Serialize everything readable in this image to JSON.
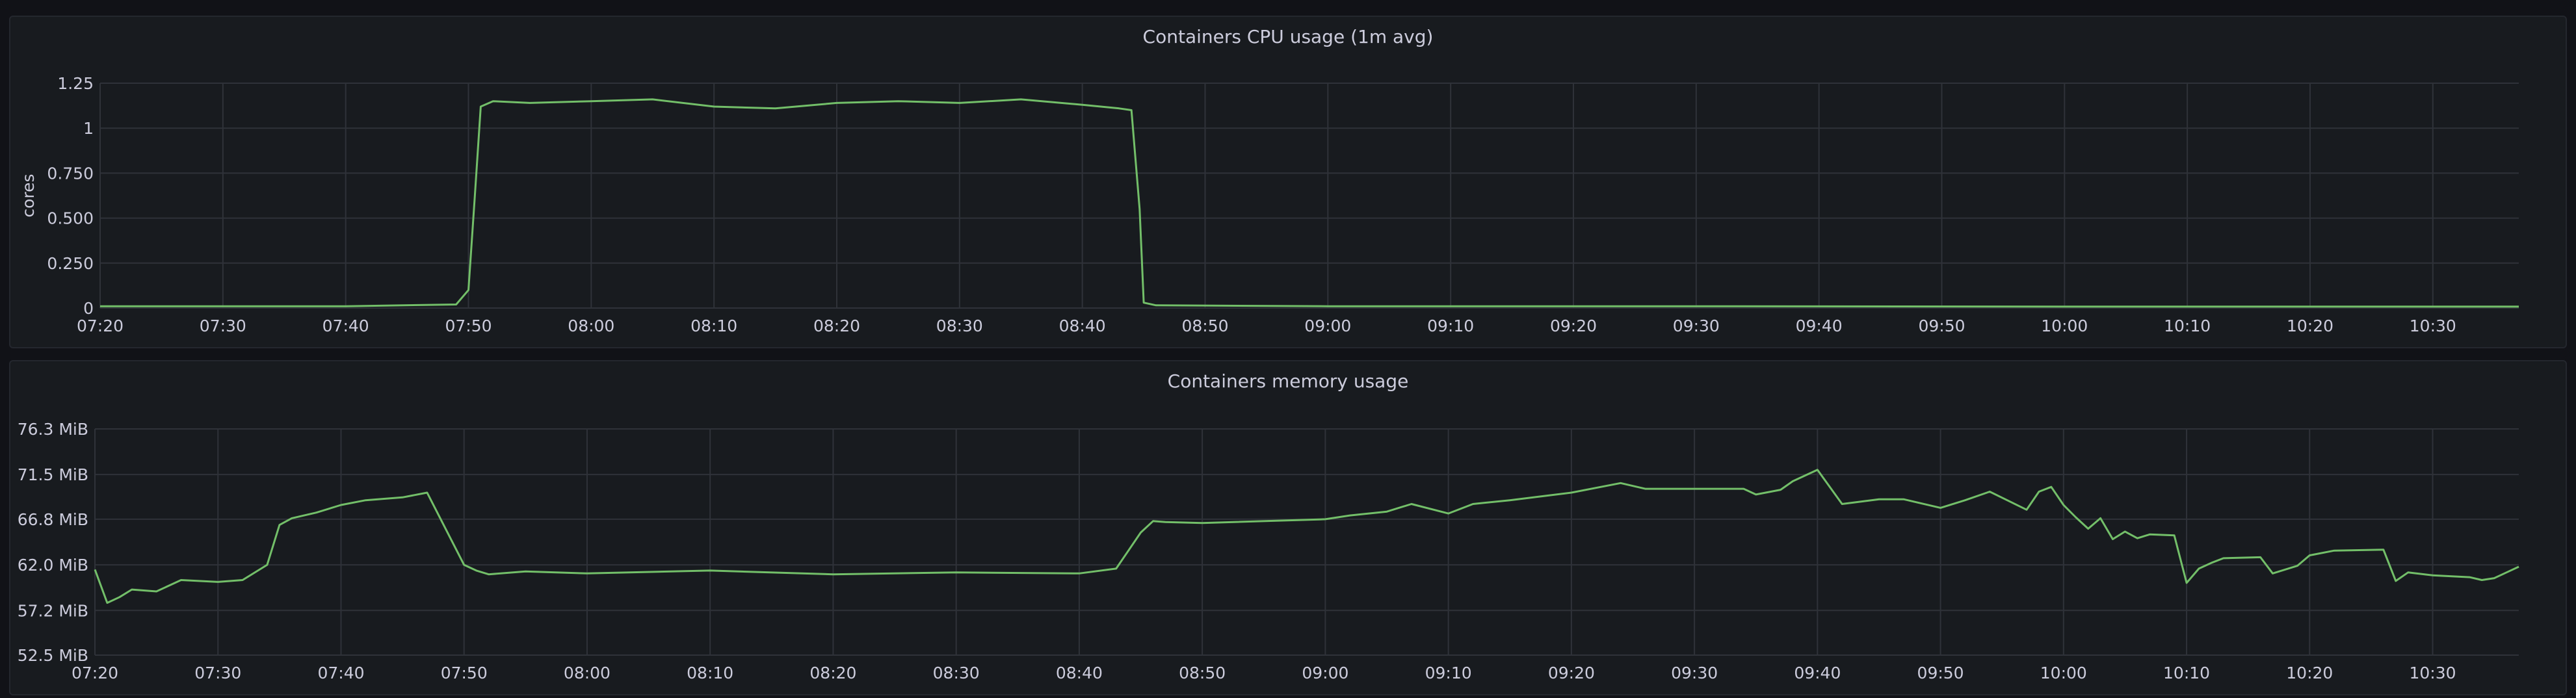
{
  "colors": {
    "series": "#73bf69",
    "grid": "#2f3239",
    "text": "#ccccdc",
    "panel": "#181b1f",
    "background": "#111217"
  },
  "chart_data": [
    {
      "type": "line",
      "title": "Containers CPU usage (1m avg)",
      "ylabel": "cores",
      "xlabel": "",
      "ylim": [
        0,
        1.25
      ],
      "yticks": [
        0,
        0.25,
        0.5,
        0.75,
        1,
        1.25
      ],
      "ytick_labels": [
        "0",
        "0.250",
        "0.500",
        "0.750",
        "1",
        "1.25"
      ],
      "xlim": [
        "07:20",
        "10:37"
      ],
      "xtick_labels": [
        "07:20",
        "07:30",
        "07:40",
        "07:50",
        "08:00",
        "08:10",
        "08:20",
        "08:30",
        "08:40",
        "08:50",
        "09:00",
        "09:10",
        "09:20",
        "09:30",
        "09:40",
        "09:50",
        "10:00",
        "10:10",
        "10:20",
        "10:30"
      ],
      "grid": true,
      "legend": "none",
      "series": [
        {
          "x": [
            "07:20",
            "07:30",
            "07:40",
            "07:49",
            "07:50",
            "07:50:30",
            "07:51",
            "07:52",
            "07:55",
            "08:00",
            "08:05",
            "08:10",
            "08:15",
            "08:20",
            "08:25",
            "08:30",
            "08:35",
            "08:40",
            "08:43",
            "08:44",
            "08:44:40",
            "08:45",
            "08:46",
            "09:00",
            "09:30",
            "10:00",
            "10:30",
            "10:37"
          ],
          "y": [
            0.01,
            0.01,
            0.01,
            0.02,
            0.1,
            0.6,
            1.12,
            1.15,
            1.14,
            1.15,
            1.16,
            1.12,
            1.11,
            1.14,
            1.15,
            1.14,
            1.16,
            1.13,
            1.11,
            1.1,
            0.55,
            0.03,
            0.015,
            0.01,
            0.01,
            0.008,
            0.008,
            0.008
          ]
        }
      ]
    },
    {
      "type": "line",
      "title": "Containers memory usage",
      "ylabel": "",
      "xlabel": "",
      "ylim": [
        52.5,
        76.3
      ],
      "yticks": [
        52.5,
        57.2,
        62.0,
        66.8,
        71.5,
        76.3
      ],
      "ytick_labels": [
        "52.5 MiB",
        "57.2 MiB",
        "62.0 MiB",
        "66.8 MiB",
        "71.5 MiB",
        "76.3 MiB"
      ],
      "xlim": [
        "07:20",
        "10:37"
      ],
      "xtick_labels": [
        "07:20",
        "07:30",
        "07:40",
        "07:50",
        "08:00",
        "08:10",
        "08:20",
        "08:30",
        "08:40",
        "08:50",
        "09:00",
        "09:10",
        "09:20",
        "09:30",
        "09:40",
        "09:50",
        "10:00",
        "10:10",
        "10:20",
        "10:30"
      ],
      "grid": true,
      "legend": "none",
      "series": [
        {
          "x": [
            "07:20",
            "07:21",
            "07:22",
            "07:23",
            "07:25",
            "07:27",
            "07:30",
            "07:32",
            "07:34",
            "07:35",
            "07:36",
            "07:38",
            "07:40",
            "07:42",
            "07:45",
            "07:47",
            "07:50",
            "07:51",
            "07:52",
            "07:55",
            "08:00",
            "08:10",
            "08:20",
            "08:30",
            "08:40",
            "08:43",
            "08:44",
            "08:45",
            "08:46",
            "08:47",
            "08:50",
            "09:00",
            "09:02",
            "09:05",
            "09:07",
            "09:10",
            "09:12",
            "09:15",
            "09:20",
            "09:24",
            "09:26",
            "09:30",
            "09:34",
            "09:35",
            "09:37",
            "09:38",
            "09:40",
            "09:42",
            "09:45",
            "09:47",
            "09:50",
            "09:52",
            "09:54",
            "09:57",
            "09:58",
            "09:59",
            "10:00",
            "10:01",
            "10:02",
            "10:03",
            "10:04",
            "10:05",
            "10:06",
            "10:07",
            "10:09",
            "10:10",
            "10:11",
            "10:12",
            "10:13",
            "10:16",
            "10:17",
            "10:19",
            "10:20",
            "10:22",
            "10:26",
            "10:27",
            "10:28",
            "10:30",
            "10:33",
            "10:34",
            "10:35",
            "10:36",
            "10:37"
          ],
          "y": [
            61.5,
            58.0,
            58.6,
            59.4,
            59.2,
            60.4,
            60.2,
            60.4,
            62.0,
            66.2,
            66.9,
            67.5,
            68.3,
            68.8,
            69.1,
            69.6,
            62.0,
            61.4,
            61.0,
            61.3,
            61.1,
            61.4,
            61.0,
            61.2,
            61.1,
            61.6,
            63.5,
            65.4,
            66.6,
            66.5,
            66.4,
            66.8,
            67.2,
            67.6,
            68.4,
            67.4,
            68.4,
            68.8,
            69.6,
            70.6,
            70.0,
            70.0,
            70.0,
            69.4,
            69.9,
            70.8,
            72.0,
            68.4,
            68.9,
            68.9,
            68.0,
            68.8,
            69.7,
            67.8,
            69.7,
            70.2,
            68.3,
            67.0,
            65.8,
            66.9,
            64.7,
            65.5,
            64.8,
            65.2,
            65.1,
            60.1,
            61.6,
            62.2,
            62.7,
            62.8,
            61.1,
            61.9,
            63.0,
            63.5,
            63.6,
            60.3,
            61.2,
            60.9,
            60.7,
            60.4,
            60.6,
            61.2,
            61.8
          ]
        }
      ]
    }
  ]
}
